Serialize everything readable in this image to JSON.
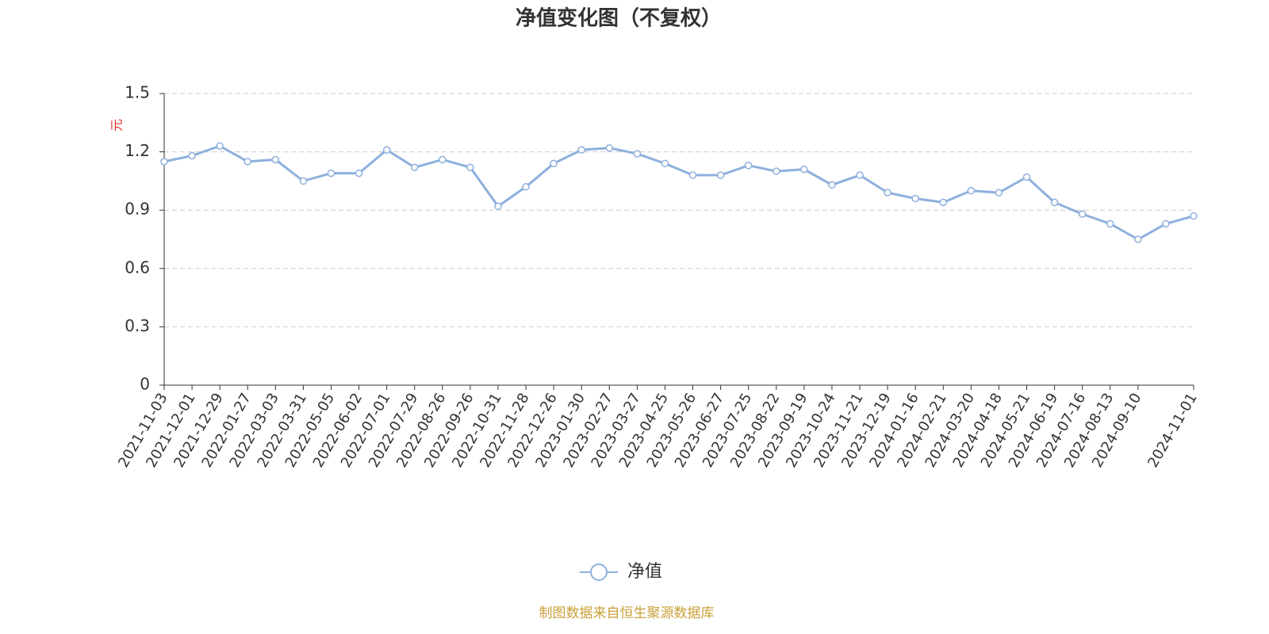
{
  "chart_data": {
    "type": "line",
    "title": "净值变化图（不复权）",
    "y_label": "元",
    "categories": [
      "2021-11-03",
      "2021-12-01",
      "2021-12-29",
      "2022-01-27",
      "2022-03-03",
      "2022-03-31",
      "2022-05-05",
      "2022-06-02",
      "2022-07-01",
      "2022-07-29",
      "2022-08-26",
      "2022-09-26",
      "2022-10-31",
      "2022-11-28",
      "2022-12-26",
      "2023-01-30",
      "2023-02-27",
      "2023-03-27",
      "2023-04-25",
      "2023-05-26",
      "2023-06-27",
      "2023-07-25",
      "2023-08-22",
      "2023-09-19",
      "2023-10-24",
      "2023-11-21",
      "2023-12-19",
      "2024-01-16",
      "2024-02-21",
      "2024-03-20",
      "2024-04-18",
      "2024-05-21",
      "2024-06-19",
      "2024-07-16",
      "2024-08-13",
      "2024-09-10",
      null,
      "2024-11-01"
    ],
    "series": [
      {
        "name": "净值",
        "color": "#8eb0dd",
        "values": [
          1.15,
          1.18,
          1.23,
          1.15,
          1.16,
          1.05,
          1.09,
          1.09,
          1.21,
          1.12,
          1.16,
          1.12,
          0.92,
          1.02,
          1.14,
          1.21,
          1.22,
          1.19,
          1.14,
          1.08,
          1.08,
          1.13,
          1.1,
          1.11,
          1.03,
          1.08,
          0.99,
          0.96,
          0.94,
          1.0,
          0.99,
          1.07,
          0.94,
          0.88,
          0.83,
          0.75,
          0.83,
          0.87
        ]
      }
    ],
    "ylim": [
      0,
      1.5
    ],
    "yticks": [
      0,
      0.3,
      0.6,
      0.9,
      1.2,
      1.5
    ],
    "grid": true,
    "source": "制图数据来自恒生聚源数据库"
  }
}
